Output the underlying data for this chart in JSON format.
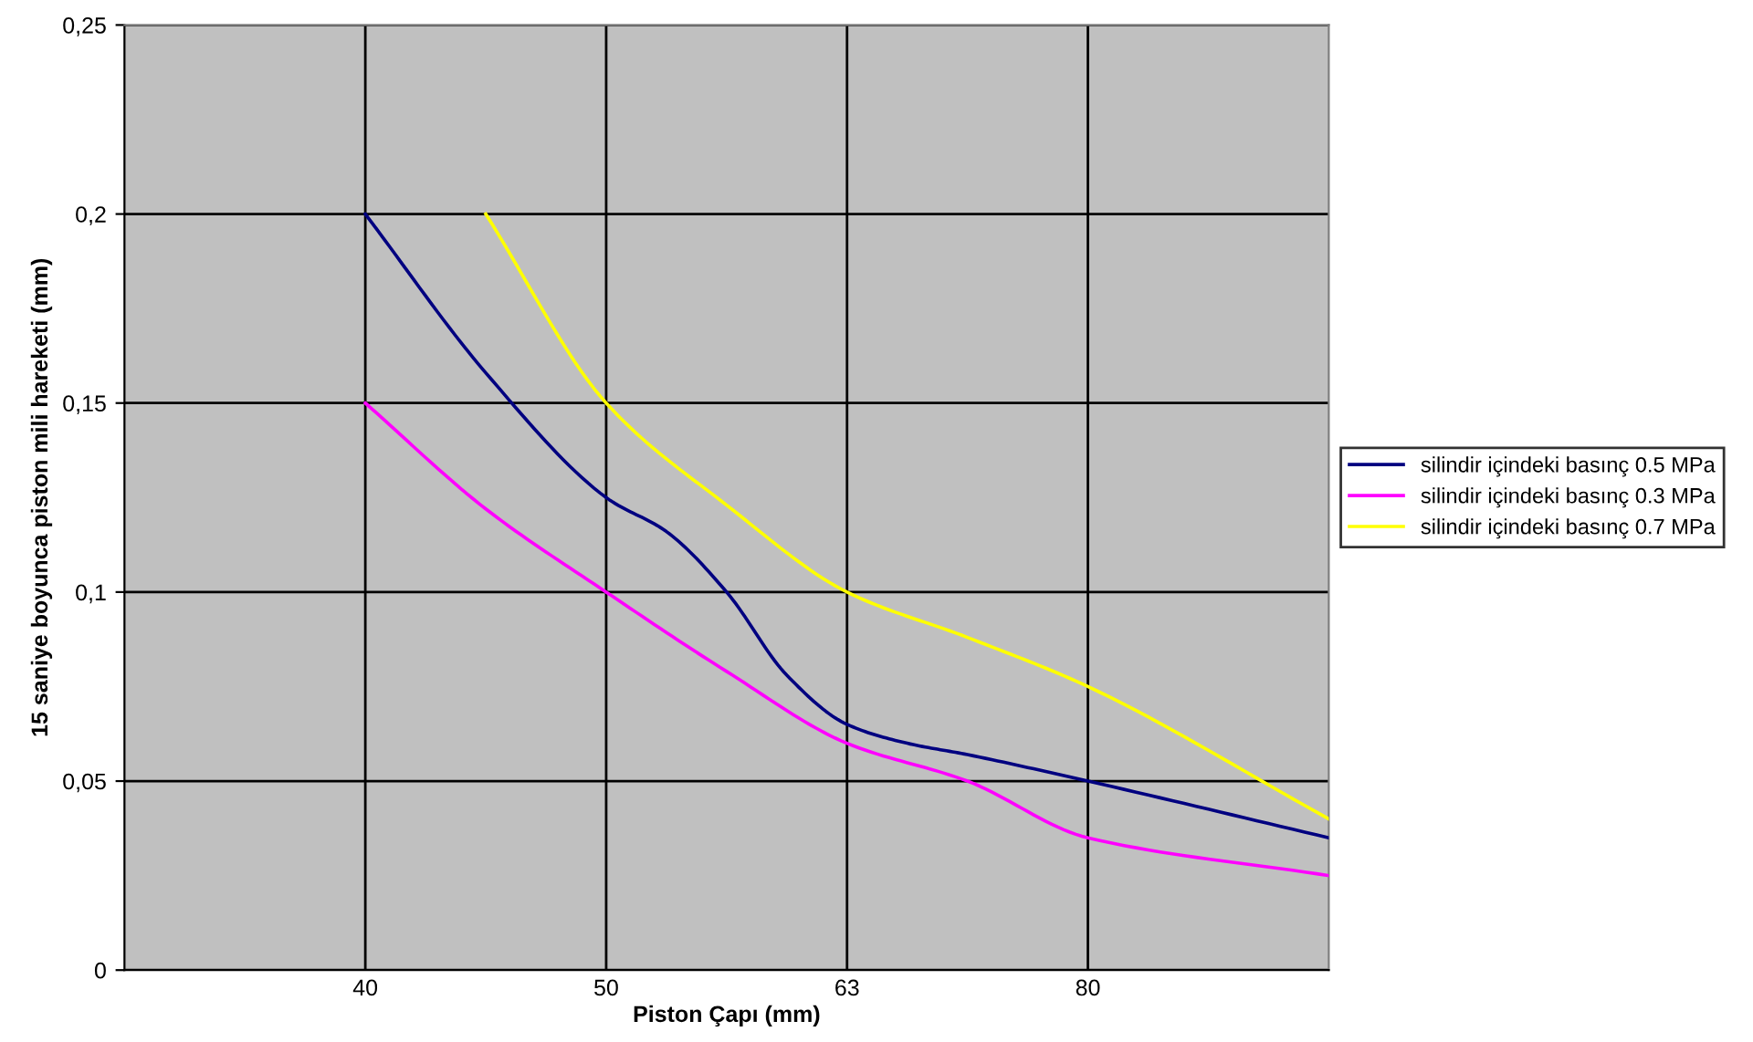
{
  "chart_data": {
    "type": "line",
    "xlabel": "Piston Çapı (mm)",
    "ylabel": "15 saniye boyunca piston mili hareketi (mm)",
    "categories": [
      null,
      null,
      null,
      null,
      "40",
      null,
      null,
      null,
      "50",
      null,
      null,
      null,
      "63",
      null,
      null,
      null,
      "80",
      null,
      null,
      null,
      null
    ],
    "ylim": [
      0,
      0.25
    ],
    "yticks": [
      {
        "value": 0,
        "label": "0"
      },
      {
        "value": 0.05,
        "label": "0,05"
      },
      {
        "value": 0.1,
        "label": "0,1"
      },
      {
        "value": 0.15,
        "label": "0,15"
      },
      {
        "value": 0.2,
        "label": "0,2"
      },
      {
        "value": 0.25,
        "label": "0,25"
      }
    ],
    "grid": true,
    "legend": "right",
    "marker": "none",
    "line_style": "solid",
    "series": [
      {
        "name": "silindir içindeki basınç 0.5 MPa",
        "color": "#000080",
        "values": [
          null,
          null,
          null,
          null,
          0.2,
          null,
          0.158,
          null,
          0.125,
          0.116,
          0.1,
          0.078,
          0.065,
          0.06,
          0.057,
          null,
          0.05,
          null,
          null,
          null,
          0.035
        ]
      },
      {
        "name": "silindir içindeki basınç 0.3 MPa",
        "color": "#ff00ff",
        "values": [
          null,
          null,
          null,
          null,
          0.15,
          null,
          0.122,
          null,
          0.1,
          null,
          0.079,
          null,
          0.06,
          null,
          0.05,
          null,
          0.035,
          null,
          null,
          null,
          0.025
        ]
      },
      {
        "name": "silindir içindeki basınç 0.7 MPa",
        "color": "#ffff00",
        "values": [
          null,
          null,
          null,
          null,
          null,
          null,
          0.2,
          null,
          0.15,
          null,
          0.123,
          null,
          0.1,
          null,
          0.088,
          null,
          0.075,
          null,
          null,
          null,
          0.04
        ]
      }
    ]
  }
}
